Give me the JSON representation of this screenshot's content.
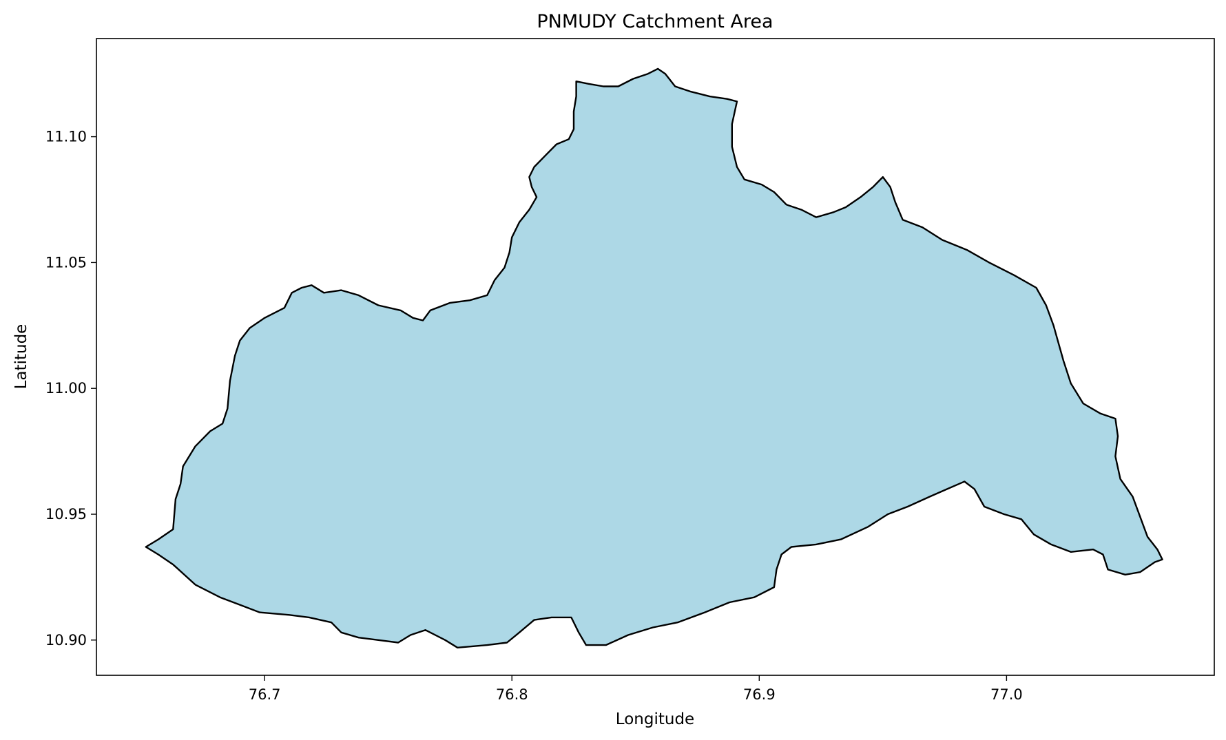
{
  "chart_data": {
    "type": "map",
    "title": "PNMUDY Catchment Area",
    "xlabel": "Longitude",
    "ylabel": "Latitude",
    "xlim": [
      76.632,
      77.084
    ],
    "ylim": [
      10.886,
      11.139
    ],
    "xticks": [
      {
        "value": 76.7,
        "label": "76.7"
      },
      {
        "value": 76.8,
        "label": "76.8"
      },
      {
        "value": 76.9,
        "label": "76.9"
      },
      {
        "value": 77.0,
        "label": "77.0"
      }
    ],
    "yticks": [
      {
        "value": 10.9,
        "label": "10.90"
      },
      {
        "value": 10.95,
        "label": "10.95"
      },
      {
        "value": 11.0,
        "label": "11.00"
      },
      {
        "value": 11.05,
        "label": "11.05"
      },
      {
        "value": 11.1,
        "label": "11.10"
      }
    ],
    "grid": false,
    "legend": "none",
    "fill_color": "#add8e6",
    "edge_color": "#000000",
    "catchment_boundary": [
      [
        76.652,
        10.937
      ],
      [
        76.657,
        10.94
      ],
      [
        76.663,
        10.944
      ],
      [
        76.664,
        10.956
      ],
      [
        76.666,
        10.962
      ],
      [
        76.667,
        10.969
      ],
      [
        76.672,
        10.977
      ],
      [
        76.678,
        10.983
      ],
      [
        76.683,
        10.986
      ],
      [
        76.685,
        10.992
      ],
      [
        76.686,
        11.003
      ],
      [
        76.688,
        11.013
      ],
      [
        76.69,
        11.019
      ],
      [
        76.694,
        11.024
      ],
      [
        76.7,
        11.028
      ],
      [
        76.708,
        11.032
      ],
      [
        76.711,
        11.038
      ],
      [
        76.715,
        11.04
      ],
      [
        76.719,
        11.041
      ],
      [
        76.724,
        11.038
      ],
      [
        76.731,
        11.039
      ],
      [
        76.738,
        11.037
      ],
      [
        76.746,
        11.033
      ],
      [
        76.755,
        11.031
      ],
      [
        76.76,
        11.028
      ],
      [
        76.764,
        11.027
      ],
      [
        76.767,
        11.031
      ],
      [
        76.775,
        11.034
      ],
      [
        76.783,
        11.035
      ],
      [
        76.79,
        11.037
      ],
      [
        76.793,
        11.043
      ],
      [
        76.797,
        11.048
      ],
      [
        76.799,
        11.054
      ],
      [
        76.8,
        11.06
      ],
      [
        76.803,
        11.066
      ],
      [
        76.807,
        11.071
      ],
      [
        76.81,
        11.076
      ],
      [
        76.808,
        11.08
      ],
      [
        76.807,
        11.084
      ],
      [
        76.809,
        11.088
      ],
      [
        76.814,
        11.093
      ],
      [
        76.818,
        11.097
      ],
      [
        76.823,
        11.099
      ],
      [
        76.825,
        11.103
      ],
      [
        76.825,
        11.11
      ],
      [
        76.826,
        11.116
      ],
      [
        76.826,
        11.122
      ],
      [
        76.831,
        11.121
      ],
      [
        76.837,
        11.12
      ],
      [
        76.843,
        11.12
      ],
      [
        76.849,
        11.123
      ],
      [
        76.855,
        11.125
      ],
      [
        76.859,
        11.127
      ],
      [
        76.862,
        11.125
      ],
      [
        76.866,
        11.12
      ],
      [
        76.872,
        11.118
      ],
      [
        76.88,
        11.116
      ],
      [
        76.887,
        11.115
      ],
      [
        76.891,
        11.114
      ],
      [
        76.889,
        11.105
      ],
      [
        76.889,
        11.096
      ],
      [
        76.891,
        11.088
      ],
      [
        76.894,
        11.083
      ],
      [
        76.901,
        11.081
      ],
      [
        76.906,
        11.078
      ],
      [
        76.911,
        11.073
      ],
      [
        76.917,
        11.071
      ],
      [
        76.923,
        11.068
      ],
      [
        76.93,
        11.07
      ],
      [
        76.935,
        11.072
      ],
      [
        76.941,
        11.076
      ],
      [
        76.946,
        11.08
      ],
      [
        76.95,
        11.084
      ],
      [
        76.953,
        11.08
      ],
      [
        76.955,
        11.074
      ],
      [
        76.958,
        11.067
      ],
      [
        76.966,
        11.064
      ],
      [
        76.974,
        11.059
      ],
      [
        76.984,
        11.055
      ],
      [
        76.993,
        11.05
      ],
      [
        77.003,
        11.045
      ],
      [
        77.012,
        11.04
      ],
      [
        77.016,
        11.033
      ],
      [
        77.019,
        11.025
      ],
      [
        77.021,
        11.018
      ],
      [
        77.023,
        11.011
      ],
      [
        77.026,
        11.002
      ],
      [
        77.031,
        10.994
      ],
      [
        77.038,
        10.99
      ],
      [
        77.044,
        10.988
      ],
      [
        77.045,
        10.981
      ],
      [
        77.044,
        10.973
      ],
      [
        77.046,
        10.964
      ],
      [
        77.051,
        10.957
      ],
      [
        77.054,
        10.949
      ],
      [
        77.057,
        10.941
      ],
      [
        77.061,
        10.936
      ],
      [
        77.063,
        10.932
      ],
      [
        77.06,
        10.931
      ],
      [
        77.054,
        10.927
      ],
      [
        77.048,
        10.926
      ],
      [
        77.041,
        10.928
      ],
      [
        77.039,
        10.934
      ],
      [
        77.035,
        10.936
      ],
      [
        77.026,
        10.935
      ],
      [
        77.018,
        10.938
      ],
      [
        77.011,
        10.942
      ],
      [
        77.006,
        10.948
      ],
      [
        76.999,
        10.95
      ],
      [
        76.991,
        10.953
      ],
      [
        76.987,
        10.96
      ],
      [
        76.983,
        10.963
      ],
      [
        76.976,
        10.96
      ],
      [
        76.969,
        10.957
      ],
      [
        76.96,
        10.953
      ],
      [
        76.952,
        10.95
      ],
      [
        76.944,
        10.945
      ],
      [
        76.933,
        10.94
      ],
      [
        76.923,
        10.938
      ],
      [
        76.913,
        10.937
      ],
      [
        76.909,
        10.934
      ],
      [
        76.907,
        10.928
      ],
      [
        76.906,
        10.921
      ],
      [
        76.898,
        10.917
      ],
      [
        76.888,
        10.915
      ],
      [
        76.878,
        10.911
      ],
      [
        76.867,
        10.907
      ],
      [
        76.857,
        10.905
      ],
      [
        76.847,
        10.902
      ],
      [
        76.838,
        10.898
      ],
      [
        76.83,
        10.898
      ],
      [
        76.827,
        10.903
      ],
      [
        76.824,
        10.909
      ],
      [
        76.816,
        10.909
      ],
      [
        76.809,
        10.908
      ],
      [
        76.803,
        10.903
      ],
      [
        76.798,
        10.899
      ],
      [
        76.79,
        10.898
      ],
      [
        76.778,
        10.897
      ],
      [
        76.773,
        10.9
      ],
      [
        76.765,
        10.904
      ],
      [
        76.759,
        10.902
      ],
      [
        76.754,
        10.899
      ],
      [
        76.746,
        10.9
      ],
      [
        76.738,
        10.901
      ],
      [
        76.731,
        10.903
      ],
      [
        76.727,
        10.907
      ],
      [
        76.718,
        10.909
      ],
      [
        76.71,
        10.91
      ],
      [
        76.698,
        10.911
      ],
      [
        76.69,
        10.914
      ],
      [
        76.682,
        10.917
      ],
      [
        76.672,
        10.922
      ],
      [
        76.663,
        10.93
      ],
      [
        76.657,
        10.934
      ],
      [
        76.652,
        10.937
      ]
    ]
  }
}
